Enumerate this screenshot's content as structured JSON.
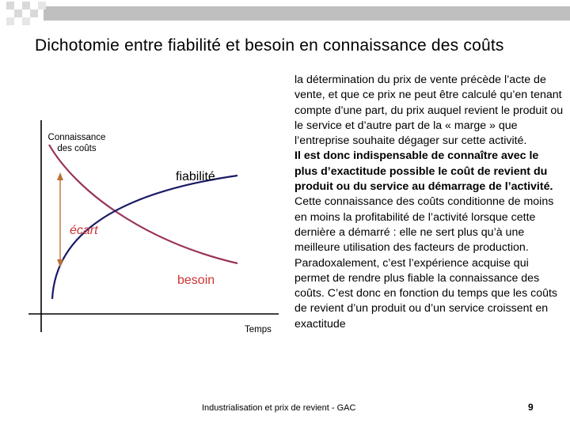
{
  "slide": {
    "title": "Dichotomie entre fiabilité et besoin en connaissance des coûts",
    "footer": "Industrialisation et prix de revient - GAC",
    "page_number": "9"
  },
  "diagram": {
    "y_axis_label_line1": "Connaissance",
    "y_axis_label_line2": "des coûts",
    "x_axis_label": "Temps",
    "curve_rising_label": "fiabilité",
    "curve_falling_label": "besoin",
    "gap_label": "écart",
    "colors": {
      "rising_curve": "#1a1a66",
      "falling_curve": "#993355",
      "gap_label": "#cc3333",
      "gap_arrow": "#b87333"
    }
  },
  "text": {
    "para1": "la détermination du prix de vente précède l’acte de vente, et que ce prix ne peut être calculé qu’en tenant compte d’une part, du prix auquel revient le produit ou le service et d’autre part de la « marge » que l’entreprise souhaite dégager sur cette activité.",
    "para2": "Il est donc indispensable de connaître avec le plus d’exactitude possible le coût de revient du produit ou du service au démarrage de l’activité.",
    "para3": "Cette connaissance des coûts conditionne de moins en moins la profitabilité de l’activité lorsque cette dernière a démarré : elle ne sert plus qu’à une meilleure utilisation des facteurs de production.",
    "para4": "Paradoxalement, c’est l’expérience acquise qui permet de rendre plus fiable la connaissance des coûts. C’est donc en fonction du temps que les coûts de revient d’un produit ou d’un service croissent en exactitude"
  }
}
